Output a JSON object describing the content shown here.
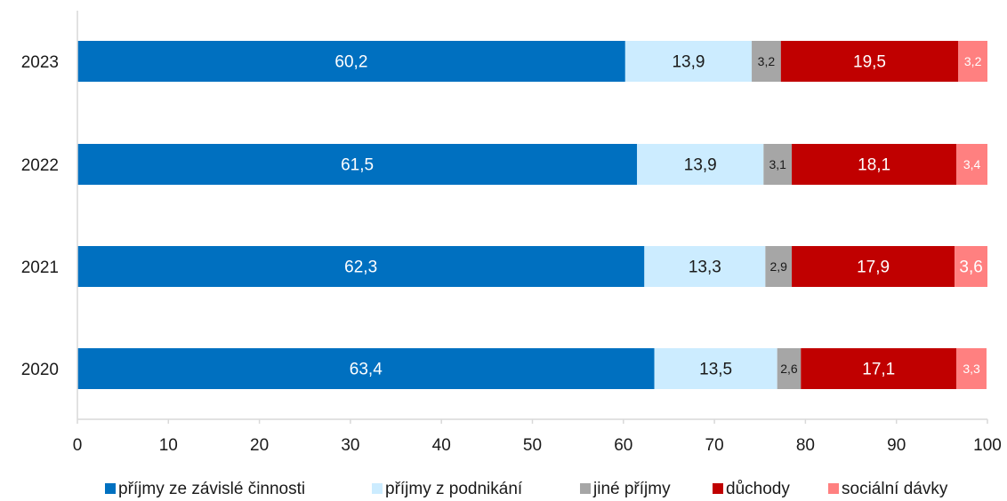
{
  "chart_data": {
    "type": "bar",
    "orientation": "horizontal",
    "stacked": true,
    "categories": [
      "2023",
      "2022",
      "2021",
      "2020"
    ],
    "series": [
      {
        "name": "příjmy ze závislé činnosti",
        "color": "#0070C0",
        "label_color": "#ffffff",
        "values": [
          60.2,
          61.5,
          62.3,
          63.4
        ],
        "labels": [
          "60,2",
          "61,5",
          "62,3",
          "63,4"
        ]
      },
      {
        "name": "příjmy z podnikání",
        "color": "#CCECFF",
        "label_color": "#1a1a1a",
        "values": [
          13.9,
          13.9,
          13.3,
          13.5
        ],
        "labels": [
          "13,9",
          "13,9",
          "13,3",
          "13,5"
        ]
      },
      {
        "name": "jiné příjmy",
        "color": "#A6A6A6",
        "label_color": "#1a1a1a",
        "values": [
          3.2,
          3.1,
          2.9,
          2.6
        ],
        "labels": [
          "3,2",
          "3,1",
          "2,9",
          "2,6"
        ]
      },
      {
        "name": "důchody",
        "color": "#C00000",
        "label_color": "#ffffff",
        "values": [
          19.5,
          18.1,
          17.9,
          17.1
        ],
        "labels": [
          "19,5",
          "18,1",
          "17,9",
          "17,1"
        ]
      },
      {
        "name": "sociální dávky",
        "color": "#FF8080",
        "label_color": "#ffffff",
        "values": [
          3.2,
          3.4,
          3.6,
          3.3
        ],
        "labels": [
          "3,2",
          "3,4",
          "3,6",
          "3,3"
        ]
      }
    ],
    "x_ticks": [
      "0",
      "10",
      "20",
      "30",
      "40",
      "50",
      "60",
      "70",
      "80",
      "90",
      "100"
    ],
    "xlim": [
      0,
      100
    ],
    "grid": false,
    "legend_position": "bottom"
  }
}
